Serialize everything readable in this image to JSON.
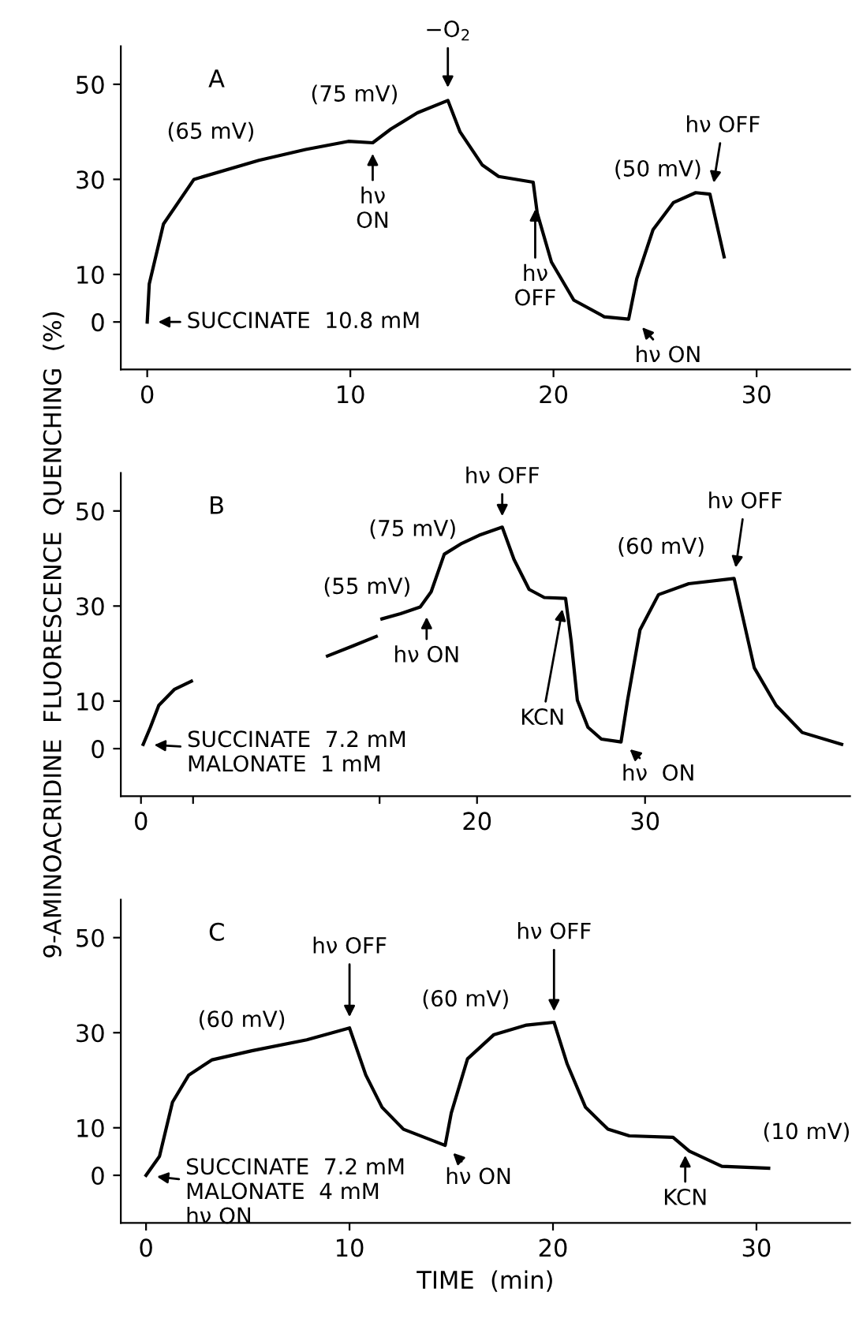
{
  "chart_data": [
    {
      "type": "line",
      "xlim": [
        -1.3,
        34.6
      ],
      "ylim": [
        -10,
        58
      ],
      "xticks": [
        0,
        10,
        20,
        30
      ],
      "yticks": [
        0,
        10,
        30,
        50
      ],
      "grid": false,
      "color": "#000000",
      "x": [
        0,
        0.1,
        0.8,
        2.3,
        5.5,
        7.8,
        9.9,
        11.1,
        12,
        13.3,
        14.8,
        15.4,
        16.5,
        17.3,
        19.0,
        19.2,
        19.9,
        21,
        22.5,
        23.7,
        24.1,
        24.9,
        25.9,
        27,
        27.7,
        28.4
      ],
      "values": [
        0,
        8,
        20.6,
        30,
        34,
        36.3,
        38,
        37.7,
        40.6,
        44,
        46.6,
        40,
        33,
        30.6,
        29.4,
        22.9,
        12.6,
        4.6,
        1.1,
        0.6,
        9.1,
        19.4,
        25.1,
        27.2,
        26.9,
        13.7
      ],
      "annotations": [
        "A",
        {
          "text": "(65 mV)",
          "x": 4,
          "y": 33
        },
        {
          "text": "(75 mV)",
          "x": 11.5,
          "y": 39
        },
        {
          "text": "−O$_{2}$",
          "x": 14.8,
          "y": 47
        },
        {
          "text": "hν\nON",
          "x": 11.1,
          "y": 37.7
        },
        {
          "text": "hν\nOFF",
          "x": 19.1,
          "y": 26
        },
        {
          "text": "hν ON",
          "x": 24.0,
          "y": 0.6
        },
        {
          "text": "(50 mV)",
          "x": 26,
          "y": 26
        },
        {
          "text": "hν OFF",
          "x": 27.8,
          "y": 27
        },
        {
          "text": "SUCCINATE  10.8 mM",
          "x": 0,
          "y": 0
        }
      ]
    },
    {
      "type": "line",
      "xlim": [
        -1.2,
        42.2
      ],
      "ylim": [
        -10,
        58
      ],
      "xticks": [
        0,
        {
          "value": 3.1,
          "label": null
        },
        {
          "value": 14.2,
          "label": null
        },
        20,
        30
      ],
      "yticks": [
        0,
        10,
        30,
        50
      ],
      "grid": false,
      "color": "#000000",
      "ylabel": "9-AMINOACRIDINE  FLUORESCENCE  QUENCHING  (%)",
      "x": [
        0.13,
        0.56,
        1.06,
        2.0,
        3.0,
        3.1,
        11.1,
        12.6,
        14.0,
        14.2,
        14.34,
        15.45,
        16.62,
        17.27,
        18.05,
        19.1,
        20.13,
        21.5,
        22.2,
        23.1,
        24.0,
        25.27,
        25.6,
        25.97,
        26.6,
        27.4,
        28.57,
        28.96,
        29.7,
        30.8,
        32.6,
        35.3,
        35.7,
        36.5,
        37.8,
        39.35,
        41.7
      ],
      "values": [
        0.9,
        4.5,
        9.1,
        12.5,
        14.2,
        null,
        19.5,
        21.6,
        23.6,
        null,
        27.3,
        28.4,
        29.8,
        33,
        40.9,
        43.2,
        44.9,
        46.6,
        39.8,
        33.5,
        31.8,
        31.6,
        22.7,
        10.2,
        4.5,
        2.0,
        1.4,
        10.2,
        25,
        32.4,
        34.7,
        35.8,
        29.5,
        17,
        9.1,
        3.4,
        0.9
      ],
      "annotations": [
        "B",
        {
          "text": "(55 mV)",
          "x": 14.5,
          "y": 27
        },
        {
          "text": "(75 mV)",
          "x": 18,
          "y": 41
        },
        {
          "text": "hν OFF",
          "x": 21.5,
          "y": 46.6
        },
        {
          "text": "hν ON",
          "x": 17.0,
          "y": 30
        },
        {
          "text": "KCN",
          "x": 25.2,
          "y": 31.6
        },
        {
          "text": "hν  ON",
          "x": 28.6,
          "y": 1.4
        },
        {
          "text": "(60 mV)",
          "x": 32,
          "y": 34.5
        },
        {
          "text": "hν OFF",
          "x": 35.3,
          "y": 35.8
        },
        {
          "text": "SUCCINATE  7.2 mM\nMALONATE  1 mM",
          "x": 0.13,
          "y": 0.9
        }
      ]
    },
    {
      "type": "line",
      "xlim": [
        -1.24,
        34.6
      ],
      "ylim": [
        -10,
        58
      ],
      "xticks": [
        0,
        10,
        20,
        30
      ],
      "yticks": [
        0,
        10,
        30,
        50
      ],
      "grid": false,
      "color": "#000000",
      "xlabel": "TIME  (min)",
      "x": [
        0,
        0.66,
        1.3,
        2.1,
        3.25,
        5.2,
        7.9,
        10,
        10.8,
        11.6,
        12.65,
        14.7,
        15.0,
        15.8,
        17.1,
        18.7,
        20.05,
        20.7,
        21.6,
        22.7,
        23.75,
        25.9,
        26.7,
        28.3,
        30.6
      ],
      "values": [
        0,
        4,
        15.4,
        21.1,
        24.3,
        26.2,
        28.5,
        31,
        21.1,
        14.3,
        9.7,
        6.3,
        13.1,
        24.5,
        29.6,
        31.6,
        32.2,
        23.4,
        14.3,
        9.7,
        8.3,
        8.0,
        5.1,
        1.9,
        1.5
      ],
      "annotations": [
        "C",
        {
          "text": "(60 mV)",
          "x": 6,
          "y": 27.5
        },
        {
          "text": "hν OFF",
          "x": 10,
          "y": 31
        },
        {
          "text": "hν ON",
          "x": 14.7,
          "y": 6.3
        },
        {
          "text": "(60 mV)",
          "x": 17,
          "y": 30
        },
        {
          "text": "hν OFF",
          "x": 20.05,
          "y": 32.2
        },
        {
          "text": "KCN",
          "x": 26.5,
          "y": 6.5
        },
        {
          "text": "(10 mV)",
          "x": 29,
          "y": 3
        },
        {
          "text": "SUCCINATE  7.2 mM\nMALONATE  4 mM\nhν ON",
          "x": 0,
          "y": 0
        }
      ]
    }
  ]
}
